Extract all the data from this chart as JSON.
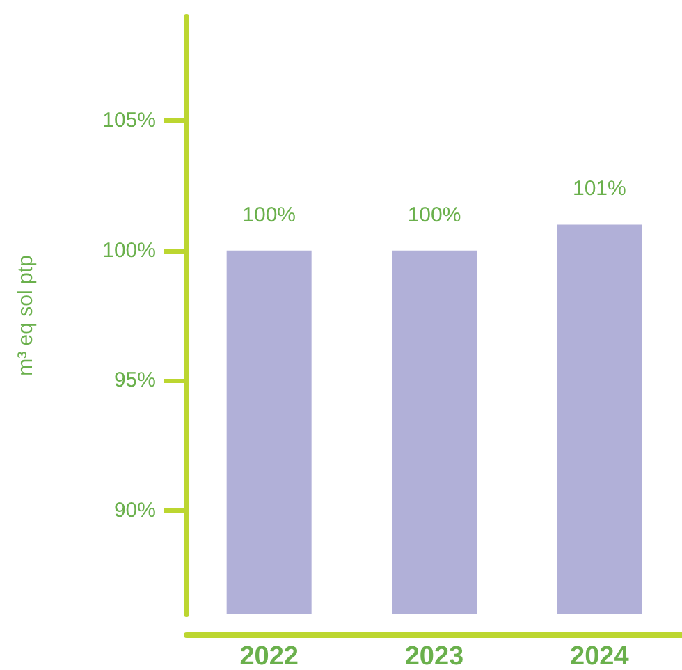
{
  "chart_data": {
    "type": "bar",
    "ylabel": "m³ eq sol ptp",
    "categories": [
      "2022",
      "2023",
      "2024"
    ],
    "series": [
      {
        "color": "#b1b0d8",
        "values": [
          100,
          100,
          101
        ],
        "value_labels": [
          "100%",
          "100%",
          "101%"
        ]
      }
    ],
    "ylim": [
      86,
      109
    ],
    "yticks": [
      {
        "value": 90,
        "label": "90%"
      },
      {
        "value": 95,
        "label": "95%"
      },
      {
        "value": 100,
        "label": "100%"
      },
      {
        "value": 105,
        "label": "105%"
      }
    ],
    "grid": false
  }
}
